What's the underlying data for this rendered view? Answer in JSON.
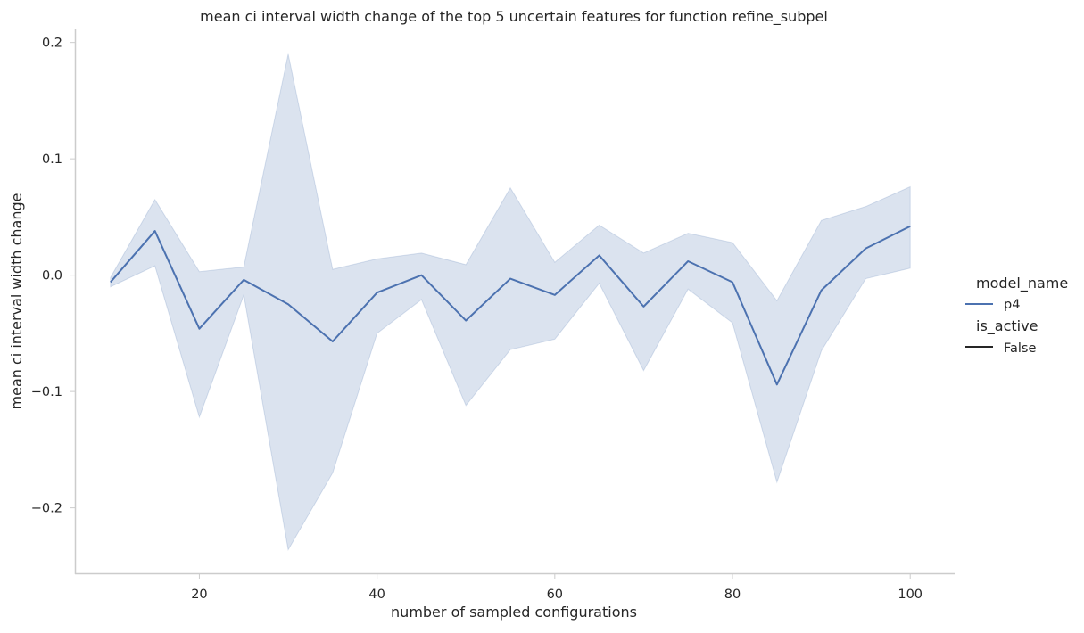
{
  "chart_data": {
    "type": "line",
    "title": "mean ci interval width change of the top 5 uncertain features for function refine_subpel",
    "xlabel": "number of sampled configurations",
    "ylabel": "mean ci interval width change",
    "xlim": [
      6,
      105
    ],
    "ylim": [
      -0.257,
      0.212
    ],
    "xticks": [
      20,
      40,
      60,
      80,
      100
    ],
    "xtick_labels": [
      "20",
      "40",
      "60",
      "80",
      "100"
    ],
    "yticks": [
      -0.2,
      -0.1,
      0.0,
      0.1,
      0.2
    ],
    "ytick_labels": [
      "−0.2",
      "−0.1",
      "0.0",
      "0.1",
      "0.2"
    ],
    "grid": false,
    "legend_placement": "right",
    "colors": {
      "line": "#4c72b0",
      "band": "#4c72b0",
      "axis": "#cccccc"
    },
    "legend": {
      "hue_title": "model_name",
      "hue_entries": [
        {
          "label": "p4",
          "color": "#4c72b0"
        }
      ],
      "style_title": "is_active",
      "style_entries": [
        {
          "label": "False",
          "color": "#262626"
        }
      ]
    },
    "x": [
      10,
      15,
      20,
      25,
      30,
      35,
      40,
      45,
      50,
      55,
      60,
      65,
      70,
      75,
      80,
      85,
      90,
      95,
      100
    ],
    "series": [
      {
        "name": "p4",
        "values": [
          -0.006,
          0.038,
          -0.046,
          -0.004,
          -0.025,
          -0.057,
          -0.015,
          0.0,
          -0.039,
          -0.003,
          -0.017,
          0.017,
          -0.027,
          0.012,
          -0.006,
          -0.094,
          -0.013,
          0.023,
          0.042
        ],
        "ci_upper": [
          -0.002,
          0.065,
          0.003,
          0.007,
          0.19,
          0.005,
          0.014,
          0.019,
          0.009,
          0.075,
          0.011,
          0.043,
          0.019,
          0.036,
          0.028,
          -0.022,
          0.047,
          0.059,
          0.076
        ],
        "ci_lower": [
          -0.01,
          0.008,
          -0.122,
          -0.017,
          -0.236,
          -0.17,
          -0.05,
          -0.021,
          -0.112,
          -0.064,
          -0.055,
          -0.007,
          -0.082,
          -0.012,
          -0.041,
          -0.178,
          -0.065,
          -0.003,
          0.006
        ]
      }
    ]
  }
}
